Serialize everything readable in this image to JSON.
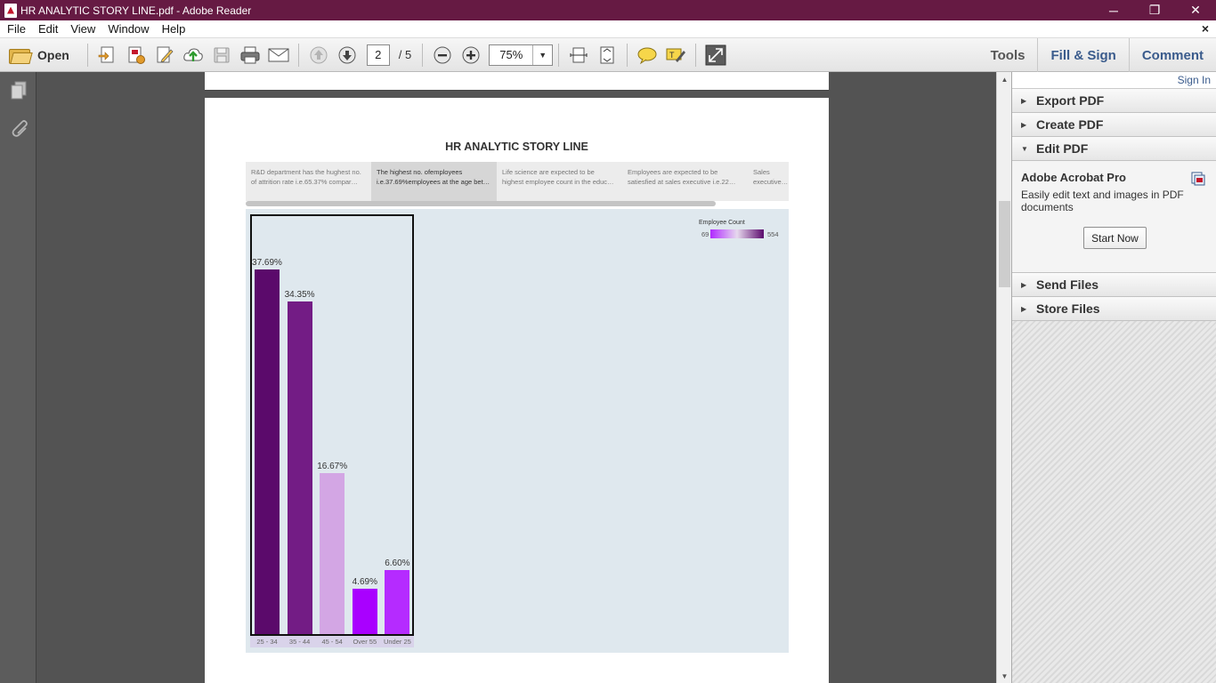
{
  "window": {
    "title": "HR ANALYTIC STORY LINE.pdf - Adobe Reader",
    "minimize": "─",
    "restore": "❐",
    "close": "✕"
  },
  "menu": {
    "items": [
      "File",
      "Edit",
      "View",
      "Window",
      "Help"
    ],
    "close": "×"
  },
  "toolbar": {
    "open_label": "Open",
    "current_page": "2",
    "total_pages": "/ 5",
    "zoom": "75%",
    "tools_label": "Tools",
    "fillsign_label": "Fill & Sign",
    "comment_label": "Comment"
  },
  "document": {
    "story_title": "HR ANALYTIC STORY LINE",
    "story_tabs": [
      {
        "text": "R&D department has the hughest no. of attrition rate  i.e.65.37% compar…"
      },
      {
        "text": "The highest no. ofemployees i.e.37.69%employees at the age bet…"
      },
      {
        "text": "Life science are expected to be highest employee count in the educ…"
      },
      {
        "text": "Employees are expected to be satiesfied at  sales executive  i.e.22…"
      },
      {
        "text": "Sales executive…"
      }
    ],
    "legend": {
      "title": "Employee Count",
      "min": "69",
      "max": "554"
    }
  },
  "chart_data": {
    "type": "bar",
    "categories": [
      "25 - 34",
      "35 - 44",
      "45 - 54",
      "Over 55",
      "Under 25"
    ],
    "values": [
      37.69,
      34.35,
      16.67,
      4.69,
      6.6
    ],
    "labels": [
      "37.69%",
      "34.35%",
      "16.67%",
      "4.69%",
      "6.60%"
    ],
    "colors": [
      "#5b0a6b",
      "#731c85",
      "#d3a6e4",
      "#a900ff",
      "#b52bff"
    ],
    "ylim": [
      0,
      40
    ],
    "legend_title": "Employee Count",
    "legend_range": [
      69,
      554
    ]
  },
  "right_pane": {
    "sign_in": "Sign In",
    "panels": [
      {
        "label": "Export PDF",
        "tri": "▶"
      },
      {
        "label": "Create PDF",
        "tri": "▶"
      },
      {
        "label": "Edit PDF",
        "tri": "▼"
      }
    ],
    "edit_pdf": {
      "title": "Adobe Acrobat Pro",
      "desc": "Easily edit text and images in PDF documents",
      "button": "Start Now"
    },
    "bottom_panels": [
      {
        "label": "Send Files",
        "tri": "▶"
      },
      {
        "label": "Store Files",
        "tri": "▶"
      }
    ]
  }
}
